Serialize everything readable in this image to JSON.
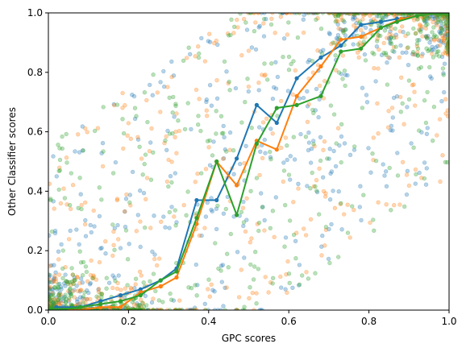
{
  "chart_data": {
    "type": "scatter",
    "title": "",
    "xlabel": "GPC scores",
    "ylabel": "Other Classifier scores",
    "xlim": [
      0.0,
      1.0
    ],
    "ylim": [
      0.0,
      1.0
    ],
    "grid": false,
    "xticks": [
      "0.0",
      "0.2",
      "0.4",
      "0.6",
      "0.8",
      "1.0"
    ],
    "yticks": [
      "0.0",
      "0.2",
      "0.4",
      "0.6",
      "0.8",
      "1.0"
    ],
    "colors": [
      "#1f77b4",
      "#ff7f0e",
      "#2ca02c"
    ],
    "calibration_lines": [
      {
        "color": "#1f77b4",
        "x": [
          0.02,
          0.08,
          0.13,
          0.18,
          0.23,
          0.28,
          0.32,
          0.37,
          0.42,
          0.47,
          0.52,
          0.57,
          0.62,
          0.68,
          0.73,
          0.78,
          0.83,
          0.87,
          0.92,
          0.97
        ],
        "y": [
          0.01,
          0.01,
          0.03,
          0.05,
          0.07,
          0.1,
          0.14,
          0.37,
          0.37,
          0.51,
          0.69,
          0.63,
          0.78,
          0.85,
          0.89,
          0.96,
          0.97,
          0.98,
          0.99,
          1.0
        ]
      },
      {
        "color": "#ff7f0e",
        "x": [
          0.02,
          0.08,
          0.13,
          0.18,
          0.23,
          0.28,
          0.32,
          0.37,
          0.42,
          0.47,
          0.52,
          0.57,
          0.62,
          0.68,
          0.73,
          0.78,
          0.83,
          0.88,
          0.92,
          0.97
        ],
        "y": [
          0.0,
          0.0,
          0.01,
          0.01,
          0.06,
          0.08,
          0.11,
          0.29,
          0.5,
          0.42,
          0.57,
          0.54,
          0.72,
          0.82,
          0.91,
          0.92,
          0.95,
          0.98,
          0.99,
          1.0
        ]
      },
      {
        "color": "#2ca02c",
        "x": [
          0.02,
          0.08,
          0.13,
          0.18,
          0.23,
          0.28,
          0.32,
          0.37,
          0.42,
          0.47,
          0.52,
          0.57,
          0.62,
          0.68,
          0.73,
          0.78,
          0.83,
          0.87,
          0.92,
          0.97
        ],
        "y": [
          0.0,
          0.01,
          0.02,
          0.03,
          0.05,
          0.1,
          0.13,
          0.31,
          0.5,
          0.32,
          0.56,
          0.68,
          0.69,
          0.72,
          0.87,
          0.88,
          0.95,
          0.97,
          0.99,
          1.0
        ]
      }
    ]
  }
}
